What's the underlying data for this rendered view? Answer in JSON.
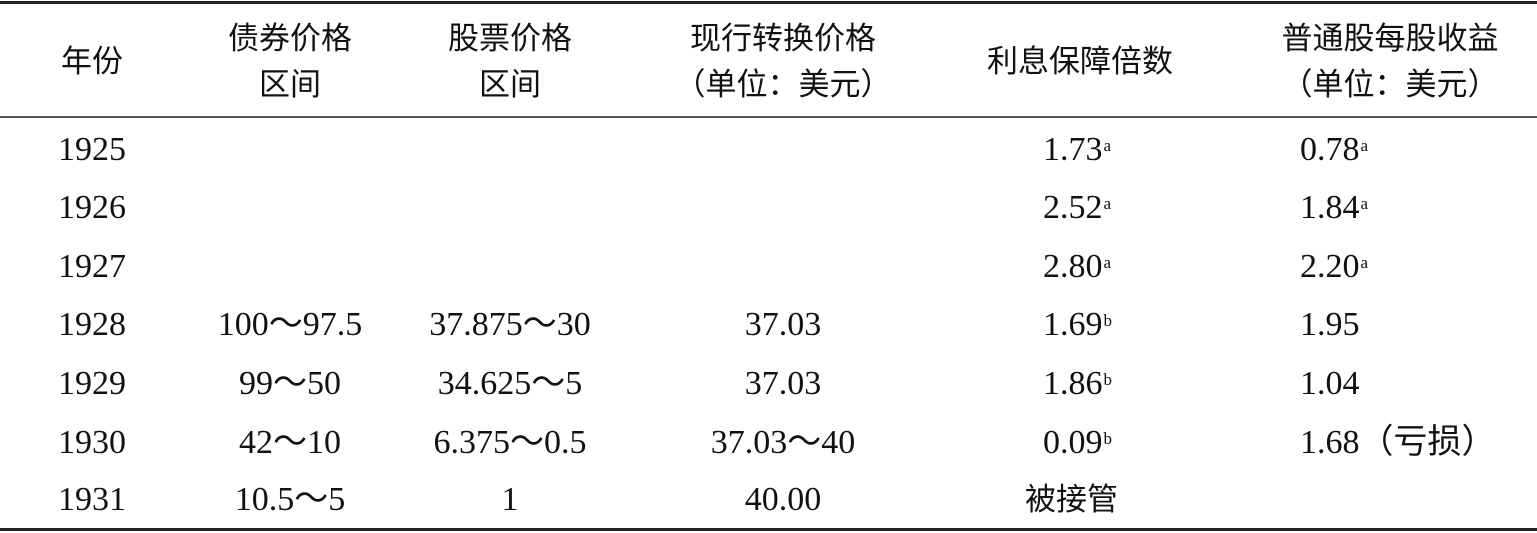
{
  "headers": [
    {
      "line1": "年份",
      "line2": ""
    },
    {
      "line1": "债券价格",
      "line2": "区间"
    },
    {
      "line1": "股票价格",
      "line2": "区间"
    },
    {
      "line1": "现行转换价格",
      "line2": "（单位：美元）"
    },
    {
      "line1": "利息保障倍数",
      "line2": ""
    },
    {
      "line1": "普通股每股收益",
      "line2": "（单位：美元）"
    }
  ],
  "rows": [
    {
      "year": "1925",
      "bond": "",
      "stock": "",
      "conv": "",
      "cov": "1.73",
      "cov_note": "a",
      "eps": "0.78",
      "eps_note": "a"
    },
    {
      "year": "1926",
      "bond": "",
      "stock": "",
      "conv": "",
      "cov": "2.52",
      "cov_note": "a",
      "eps": "1.84",
      "eps_note": "a"
    },
    {
      "year": "1927",
      "bond": "",
      "stock": "",
      "conv": "",
      "cov": "2.80",
      "cov_note": "a",
      "eps": "2.20",
      "eps_note": "a"
    },
    {
      "year": "1928",
      "bond": "100～97.5",
      "stock": "37.875～30",
      "conv": "37.03",
      "cov": "1.69",
      "cov_note": "b",
      "eps": "1.95",
      "eps_note": ""
    },
    {
      "year": "1929",
      "bond": "99～50",
      "stock": "34.625～5",
      "conv": "37.03",
      "cov": "1.86",
      "cov_note": "b",
      "eps": "1.04",
      "eps_note": ""
    },
    {
      "year": "1930",
      "bond": "42～10",
      "stock": "6.375～0.5",
      "conv": "37.03～40",
      "cov": "0.09",
      "cov_note": "b",
      "eps": "1.68（亏损）",
      "eps_note": ""
    },
    {
      "year": "1931",
      "bond": "10.5～5",
      "stock": "1",
      "conv": "40.00",
      "cov": "被接管",
      "cov_note": "",
      "eps": "",
      "eps_note": ""
    }
  ]
}
